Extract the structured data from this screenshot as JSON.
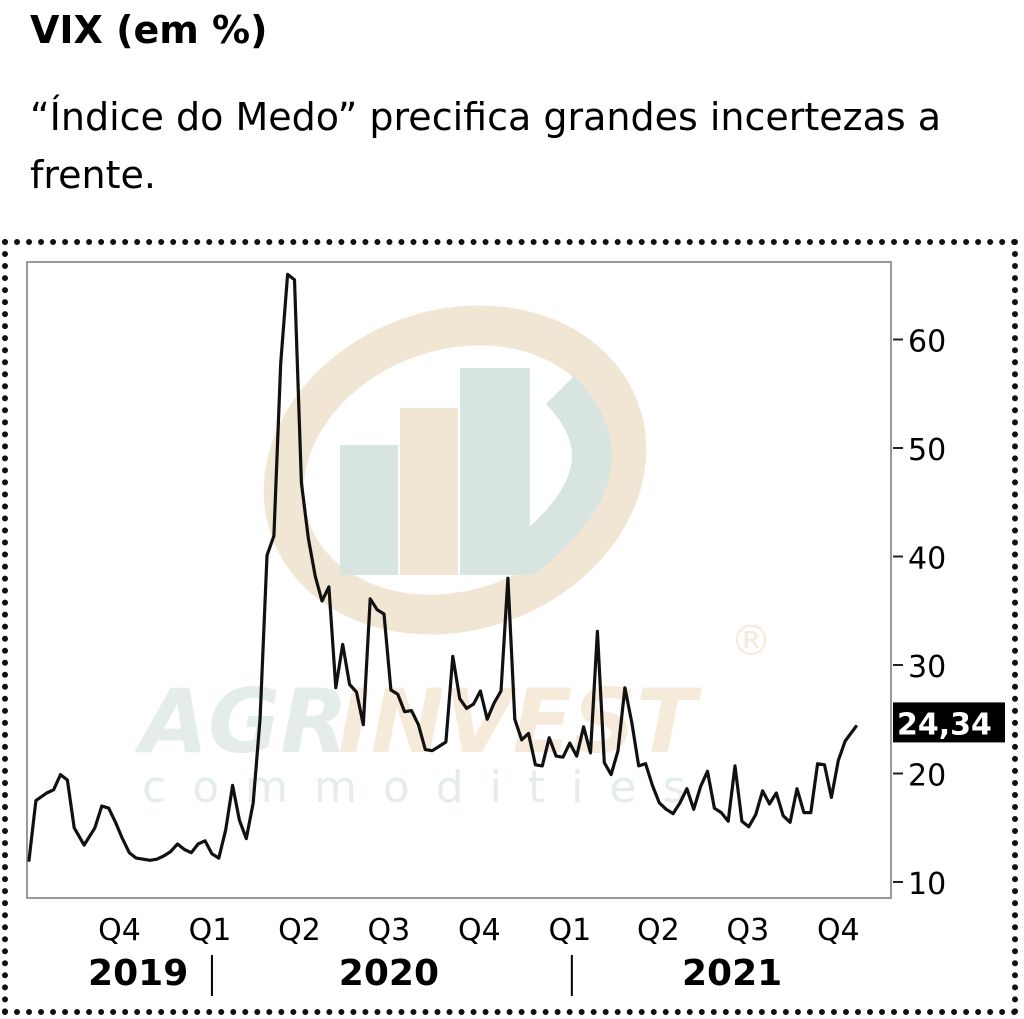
{
  "title": "VIX (em %)",
  "subtitle": "“Índice do Medo” precifica grandes incertezas a frente.",
  "watermark": {
    "brand_a": "AGR",
    "brand_b": "INVEST",
    "brand_c": "commodities",
    "registered": "®"
  },
  "chart_data": {
    "type": "line",
    "title": "VIX (em %)",
    "subtitle": "“Índice do Medo” precifica grandes incertezas a frente.",
    "xlabel": "",
    "ylabel": "",
    "ylim": [
      10,
      66
    ],
    "y_ticks": [
      10,
      20,
      30,
      40,
      50,
      60
    ],
    "y_tick_labels": [
      "10",
      "20",
      "30",
      "40",
      "50",
      "60"
    ],
    "x_range": [
      "2019-07-01",
      "2021-10-19"
    ],
    "x_ticks": [
      {
        "label": "Q4",
        "date": "2019-10-01"
      },
      {
        "label": "Q1",
        "date": "2020-01-01"
      },
      {
        "label": "Q2",
        "date": "2020-04-01"
      },
      {
        "label": "Q3",
        "date": "2020-07-01"
      },
      {
        "label": "Q4",
        "date": "2020-10-01"
      },
      {
        "label": "Q1",
        "date": "2021-01-01"
      },
      {
        "label": "Q2",
        "date": "2021-04-01"
      },
      {
        "label": "Q3",
        "date": "2021-07-01"
      },
      {
        "label": "Q4",
        "date": "2021-10-01"
      }
    ],
    "year_labels": [
      {
        "label": "2019",
        "center": "2019-10-20"
      },
      {
        "label": "2020",
        "center": "2020-07-01"
      },
      {
        "label": "2021",
        "center": "2021-06-15"
      }
    ],
    "year_dividers": [
      "2020-01-01",
      "2021-01-01"
    ],
    "grid": false,
    "last_value": {
      "value": 24.34,
      "label": "24,34"
    },
    "series": [
      {
        "color": "#111111",
        "points": [
          [
            "2019-07-01",
            12.0
          ],
          [
            "2019-07-08",
            17.5
          ],
          [
            "2019-07-19",
            18.2
          ],
          [
            "2019-07-26",
            18.5
          ],
          [
            "2019-08-02",
            19.9
          ],
          [
            "2019-08-09",
            19.4
          ],
          [
            "2019-08-16",
            15.0
          ],
          [
            "2019-08-26",
            13.4
          ],
          [
            "2019-09-06",
            15.0
          ],
          [
            "2019-09-13",
            17.0
          ],
          [
            "2019-09-20",
            16.8
          ],
          [
            "2019-09-27",
            15.5
          ],
          [
            "2019-10-04",
            14.0
          ],
          [
            "2019-10-11",
            12.7
          ],
          [
            "2019-10-18",
            12.2
          ],
          [
            "2019-10-25",
            12.1
          ],
          [
            "2019-11-01",
            12.0
          ],
          [
            "2019-11-08",
            12.1
          ],
          [
            "2019-11-15",
            12.4
          ],
          [
            "2019-11-22",
            12.8
          ],
          [
            "2019-11-29",
            13.5
          ],
          [
            "2019-12-06",
            13.0
          ],
          [
            "2019-12-13",
            12.7
          ],
          [
            "2019-12-20",
            13.5
          ],
          [
            "2019-12-27",
            13.8
          ],
          [
            "2020-01-03",
            12.6
          ],
          [
            "2020-01-10",
            12.2
          ],
          [
            "2020-01-17",
            14.8
          ],
          [
            "2020-01-24",
            18.9
          ],
          [
            "2020-01-31",
            15.7
          ],
          [
            "2020-02-07",
            14.0
          ],
          [
            "2020-02-14",
            17.3
          ],
          [
            "2020-02-21",
            25.1
          ],
          [
            "2020-02-28",
            40.1
          ],
          [
            "2020-03-06",
            41.9
          ],
          [
            "2020-03-13",
            57.8
          ],
          [
            "2020-03-20",
            66.0
          ],
          [
            "2020-03-27",
            65.5
          ],
          [
            "2020-04-03",
            46.8
          ],
          [
            "2020-04-10",
            41.7
          ],
          [
            "2020-04-17",
            38.2
          ],
          [
            "2020-04-24",
            35.9
          ],
          [
            "2020-05-01",
            37.2
          ],
          [
            "2020-05-08",
            27.9
          ],
          [
            "2020-05-15",
            31.9
          ],
          [
            "2020-05-22",
            28.2
          ],
          [
            "2020-05-29",
            27.5
          ],
          [
            "2020-06-05",
            24.5
          ],
          [
            "2020-06-12",
            36.1
          ],
          [
            "2020-06-19",
            35.1
          ],
          [
            "2020-06-26",
            34.7
          ],
          [
            "2020-07-03",
            27.7
          ],
          [
            "2020-07-10",
            27.3
          ],
          [
            "2020-07-17",
            25.7
          ],
          [
            "2020-07-24",
            25.8
          ],
          [
            "2020-07-31",
            24.5
          ],
          [
            "2020-08-07",
            22.2
          ],
          [
            "2020-08-14",
            22.1
          ],
          [
            "2020-08-21",
            22.5
          ],
          [
            "2020-08-28",
            22.9
          ],
          [
            "2020-09-04",
            30.8
          ],
          [
            "2020-09-11",
            26.9
          ],
          [
            "2020-09-18",
            26.0
          ],
          [
            "2020-09-25",
            26.4
          ],
          [
            "2020-10-02",
            27.6
          ],
          [
            "2020-10-09",
            25.0
          ],
          [
            "2020-10-16",
            26.5
          ],
          [
            "2020-10-23",
            27.6
          ],
          [
            "2020-10-30",
            38.0
          ],
          [
            "2020-11-06",
            25.0
          ],
          [
            "2020-11-13",
            23.1
          ],
          [
            "2020-11-20",
            23.7
          ],
          [
            "2020-11-27",
            20.8
          ],
          [
            "2020-12-04",
            20.7
          ],
          [
            "2020-12-11",
            23.3
          ],
          [
            "2020-12-18",
            21.6
          ],
          [
            "2020-12-25",
            21.5
          ],
          [
            "2021-01-01",
            22.8
          ],
          [
            "2021-01-08",
            21.6
          ],
          [
            "2021-01-15",
            24.3
          ],
          [
            "2021-01-22",
            21.9
          ],
          [
            "2021-01-29",
            33.1
          ],
          [
            "2021-02-05",
            21.0
          ],
          [
            "2021-02-12",
            19.9
          ],
          [
            "2021-02-19",
            22.1
          ],
          [
            "2021-02-26",
            27.9
          ],
          [
            "2021-03-05",
            24.7
          ],
          [
            "2021-03-12",
            20.7
          ],
          [
            "2021-03-19",
            20.9
          ],
          [
            "2021-03-26",
            18.9
          ],
          [
            "2021-04-02",
            17.3
          ],
          [
            "2021-04-09",
            16.7
          ],
          [
            "2021-04-16",
            16.3
          ],
          [
            "2021-04-23",
            17.3
          ],
          [
            "2021-04-30",
            18.6
          ],
          [
            "2021-05-07",
            16.7
          ],
          [
            "2021-05-14",
            18.8
          ],
          [
            "2021-05-21",
            20.2
          ],
          [
            "2021-05-28",
            16.8
          ],
          [
            "2021-06-04",
            16.4
          ],
          [
            "2021-06-11",
            15.6
          ],
          [
            "2021-06-18",
            20.7
          ],
          [
            "2021-06-25",
            15.6
          ],
          [
            "2021-07-02",
            15.1
          ],
          [
            "2021-07-09",
            16.2
          ],
          [
            "2021-07-16",
            18.4
          ],
          [
            "2021-07-23",
            17.2
          ],
          [
            "2021-07-30",
            18.2
          ],
          [
            "2021-08-06",
            16.1
          ],
          [
            "2021-08-13",
            15.5
          ],
          [
            "2021-08-20",
            18.6
          ],
          [
            "2021-08-27",
            16.4
          ],
          [
            "2021-09-03",
            16.4
          ],
          [
            "2021-09-10",
            20.9
          ],
          [
            "2021-09-17",
            20.8
          ],
          [
            "2021-09-24",
            17.8
          ],
          [
            "2021-10-01",
            21.2
          ],
          [
            "2021-10-08",
            23.0
          ],
          [
            "2021-10-19",
            24.34
          ]
        ]
      }
    ]
  }
}
